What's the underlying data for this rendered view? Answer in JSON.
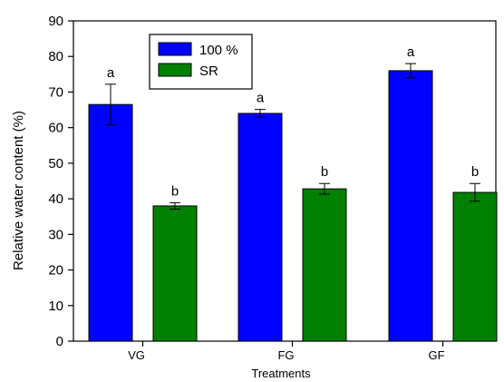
{
  "chart_data": {
    "type": "bar",
    "categories": [
      "VG",
      "FG",
      "GF"
    ],
    "series": [
      {
        "name": "100 %",
        "color": "#0000ff",
        "values": [
          66.5,
          64.0,
          76.0
        ],
        "errors": [
          5.7,
          1.1,
          2.0
        ],
        "labels": [
          "a",
          "a",
          "a"
        ]
      },
      {
        "name": "SR",
        "color": "#008000",
        "values": [
          38.0,
          42.8,
          41.8
        ],
        "errors": [
          0.9,
          1.5,
          2.5
        ],
        "labels": [
          "b",
          "b",
          "b"
        ]
      }
    ],
    "xlabel": "Treatments",
    "ylabel": "Relative water content (%)",
    "ylim": [
      0,
      90
    ],
    "yticks": [
      0,
      10,
      20,
      30,
      40,
      50,
      60,
      70,
      80,
      90
    ],
    "grid": false,
    "legend_position": "top-left"
  }
}
